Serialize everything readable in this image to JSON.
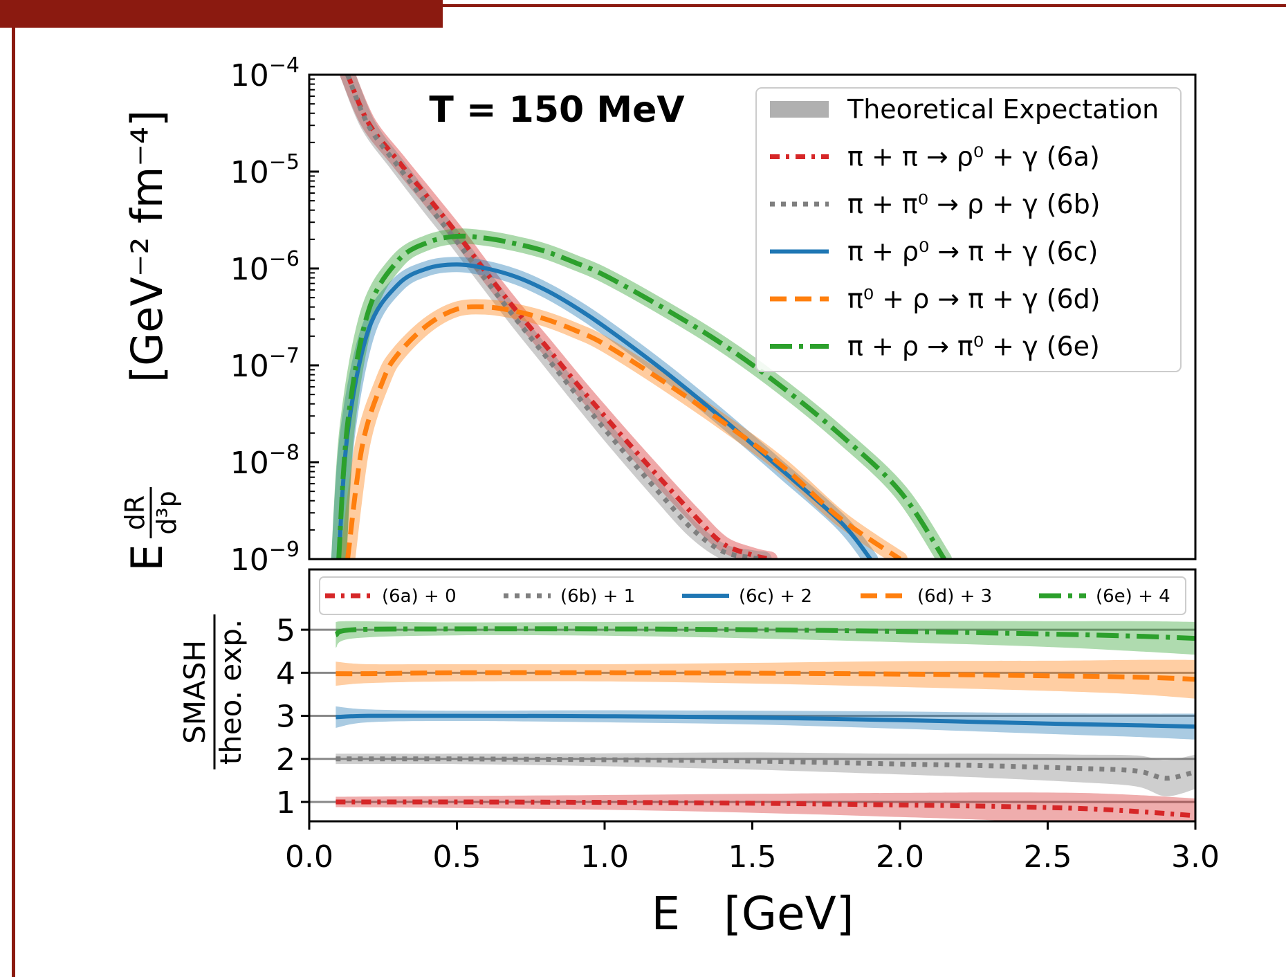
{
  "colors": {
    "frame": "#8b1a10",
    "red": "#d62728",
    "gray": "#7f7f7f",
    "blue": "#1f77b4",
    "orange": "#ff7f0e",
    "green": "#2ca02c",
    "band_gray": "#b0b0b0"
  },
  "chart_data": [
    {
      "type": "line",
      "annotation": "T = 150 MeV",
      "ylabel": "E dR/d³p  [GeV⁻² fm⁻⁴]",
      "ylabel_parts": {
        "E": "E",
        "num": "dR",
        "den": "d³p",
        "unit": "[GeV⁻² fm⁻⁴]"
      },
      "xlim": [
        0,
        3.0
      ],
      "ylim": [
        1e-09,
        0.0001
      ],
      "yscale": "log",
      "ytick_labels": [
        {
          "base": "10",
          "exp": "−4"
        },
        {
          "base": "10",
          "exp": "−5"
        },
        {
          "base": "10",
          "exp": "−6"
        },
        {
          "base": "10",
          "exp": "−7"
        },
        {
          "base": "10",
          "exp": "−8"
        },
        {
          "base": "10",
          "exp": "−9"
        }
      ],
      "legend_position": "top-right",
      "legend": [
        {
          "text": "Theoretical Expectation",
          "style": "band"
        },
        {
          "text": "π  +  π  →  ρ⁰ +  γ (6a)",
          "style": "dotdash",
          "color": "#d62728"
        },
        {
          "text": "π  +  π⁰ →  ρ  +  γ (6b)",
          "style": "dotted",
          "color": "#7f7f7f"
        },
        {
          "text": "π  +  ρ⁰ →  π  +  γ (6c)",
          "style": "solid",
          "color": "#1f77b4"
        },
        {
          "text": "π⁰ +  ρ  →  π  +  γ (6d)",
          "style": "dashed",
          "color": "#ff7f0e"
        },
        {
          "text": "π  +  ρ  →  π⁰ +  γ (6e)",
          "style": "dashdot",
          "color": "#2ca02c"
        }
      ],
      "series": [
        {
          "key": "6a",
          "x": [
            0.13,
            0.2,
            0.3,
            0.4,
            0.5,
            0.6,
            0.7,
            0.8,
            0.9,
            1.0,
            1.1,
            1.2,
            1.3,
            1.4,
            1.5,
            1.56
          ],
          "y": [
            0.0001,
            3.2e-05,
            1.3e-05,
            5.5e-06,
            2.3e-06,
            9e-07,
            3.7e-07,
            1.6e-07,
            6.8e-08,
            3e-08,
            1.35e-08,
            6.2e-09,
            2.9e-09,
            1.45e-09,
            1.1e-09,
            1e-09
          ]
        },
        {
          "key": "6b",
          "x": [
            0.13,
            0.2,
            0.3,
            0.4,
            0.5,
            0.6,
            0.7,
            0.8,
            0.9,
            1.0,
            1.1,
            1.2,
            1.3,
            1.4,
            1.5,
            1.54
          ],
          "y": [
            0.0001,
            3e-05,
            1.15e-05,
            4.6e-06,
            1.9e-06,
            7.5e-07,
            3e-07,
            1.25e-07,
            5.2e-08,
            2.2e-08,
            9.6e-09,
            4.3e-09,
            2e-09,
            1.2e-09,
            1.03e-09,
            1e-09
          ]
        },
        {
          "key": "6c",
          "x": [
            0.1,
            0.13,
            0.2,
            0.3,
            0.4,
            0.5,
            0.6,
            0.7,
            0.8,
            0.9,
            1.0,
            1.2,
            1.4,
            1.6,
            1.8,
            1.9
          ],
          "y": [
            1e-09,
            2e-08,
            2.3e-07,
            6.8e-07,
            1e-06,
            1.1e-06,
            1e-06,
            8.2e-07,
            6e-07,
            4e-07,
            2.5e-07,
            8.8e-08,
            2.8e-08,
            8.3e-09,
            2.4e-09,
            1e-09
          ]
        },
        {
          "key": "6d",
          "x": [
            0.13,
            0.18,
            0.25,
            0.3,
            0.4,
            0.5,
            0.6,
            0.7,
            0.8,
            0.9,
            1.0,
            1.2,
            1.4,
            1.6,
            1.8,
            2.0
          ],
          "y": [
            1e-09,
            1.5e-08,
            7e-08,
            1.3e-07,
            2.6e-07,
            3.8e-07,
            4e-07,
            3.6e-07,
            3e-07,
            2.3e-07,
            1.65e-07,
            6.8e-08,
            2.6e-08,
            9.2e-09,
            2.6e-09,
            1e-09
          ]
        },
        {
          "key": "6e",
          "x": [
            0.1,
            0.13,
            0.2,
            0.3,
            0.4,
            0.5,
            0.6,
            0.7,
            0.8,
            0.9,
            1.0,
            1.2,
            1.4,
            1.6,
            1.8,
            2.0,
            2.15
          ],
          "y": [
            1e-09,
            2.5e-08,
            3.6e-07,
            1.2e-06,
            1.85e-06,
            2.15e-06,
            2.05e-06,
            1.8e-06,
            1.5e-06,
            1.15e-06,
            8.5e-07,
            3.9e-07,
            1.65e-07,
            6e-08,
            1.9e-08,
            5e-09,
            1e-09
          ]
        }
      ]
    },
    {
      "type": "line",
      "ylabel_num": "SMASH",
      "ylabel_den": "theo. exp.",
      "xlabel": "E   [GeV]",
      "xlim": [
        0,
        3.0
      ],
      "ylim": [
        0.55,
        6.4
      ],
      "xticks": [
        "0.0",
        "0.5",
        "1.0",
        "1.5",
        "2.0",
        "2.5",
        "3.0"
      ],
      "yticks": [
        "1",
        "2",
        "3",
        "4",
        "5"
      ],
      "reference_lines": [
        1,
        2,
        3,
        4,
        5
      ],
      "legend_position": "top",
      "legend": [
        {
          "text": "(6a) + 0",
          "style": "dotdash",
          "color": "#d62728"
        },
        {
          "text": "(6b) + 1",
          "style": "dotted",
          "color": "#7f7f7f"
        },
        {
          "text": "(6c) + 2",
          "style": "solid",
          "color": "#1f77b4"
        },
        {
          "text": "(6d) + 3",
          "style": "dashed",
          "color": "#ff7f0e"
        },
        {
          "text": "(6e) + 4",
          "style": "solid",
          "color": "#2ca02c"
        }
      ],
      "series": [
        {
          "key": "6a",
          "x": [
            0.09,
            0.5,
            1.0,
            1.5,
            2.0,
            2.3,
            2.6,
            2.8,
            3.0
          ],
          "y": [
            1.0,
            1.0,
            0.99,
            0.97,
            0.93,
            0.9,
            0.85,
            0.78,
            0.68
          ],
          "band": [
            0.12,
            0.14,
            0.17,
            0.22,
            0.28,
            0.32,
            0.36,
            0.38,
            0.4
          ]
        },
        {
          "key": "6b",
          "x": [
            0.09,
            0.5,
            1.0,
            1.5,
            2.0,
            2.3,
            2.6,
            2.8,
            2.9,
            3.0
          ],
          "y": [
            2.0,
            2.0,
            1.98,
            1.95,
            1.88,
            1.84,
            1.78,
            1.72,
            1.55,
            1.7
          ],
          "band": [
            0.12,
            0.12,
            0.15,
            0.2,
            0.24,
            0.28,
            0.32,
            0.36,
            0.42,
            0.4
          ]
        },
        {
          "key": "6c",
          "x": [
            0.09,
            0.2,
            0.5,
            1.0,
            1.5,
            2.0,
            2.5,
            2.8,
            3.0
          ],
          "y": [
            2.97,
            3.0,
            3.0,
            2.99,
            2.96,
            2.9,
            2.82,
            2.78,
            2.75
          ],
          "band": [
            0.25,
            0.15,
            0.12,
            0.14,
            0.16,
            0.2,
            0.24,
            0.27,
            0.3
          ]
        },
        {
          "key": "6d",
          "x": [
            0.09,
            0.2,
            0.5,
            1.0,
            1.5,
            2.0,
            2.5,
            2.8,
            3.0
          ],
          "y": [
            3.98,
            3.98,
            4.0,
            4.0,
            3.99,
            3.97,
            3.93,
            3.9,
            3.85
          ],
          "band": [
            0.28,
            0.22,
            0.2,
            0.2,
            0.24,
            0.3,
            0.35,
            0.4,
            0.45
          ]
        },
        {
          "key": "6e",
          "x": [
            0.09,
            0.15,
            0.5,
            1.0,
            1.5,
            2.0,
            2.5,
            2.8,
            3.0
          ],
          "y": [
            4.88,
            5.0,
            5.02,
            5.02,
            5.0,
            4.96,
            4.9,
            4.85,
            4.8
          ],
          "band": [
            0.3,
            0.2,
            0.15,
            0.16,
            0.2,
            0.25,
            0.3,
            0.35,
            0.38
          ]
        }
      ]
    }
  ]
}
